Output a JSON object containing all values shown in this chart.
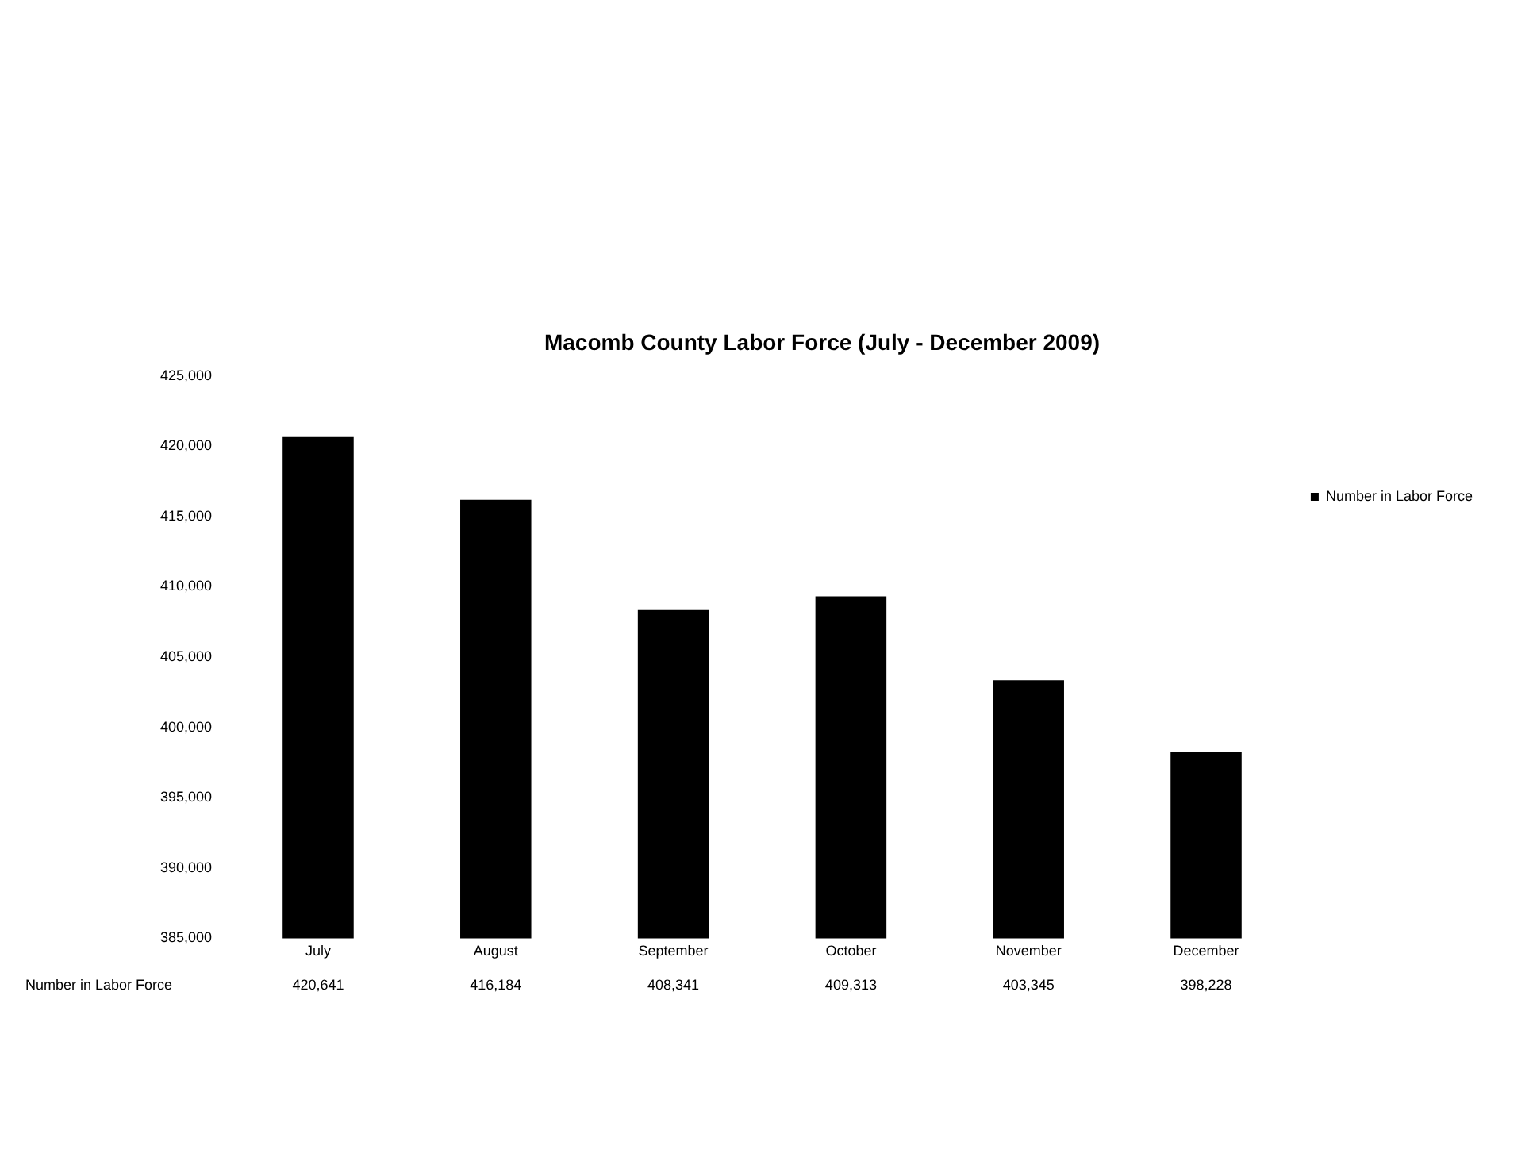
{
  "chart_data": {
    "type": "bar",
    "title": "Macomb County Labor Force (July - December 2009)",
    "categories": [
      "July",
      "August",
      "September",
      "October",
      "November",
      "December"
    ],
    "series": [
      {
        "name": "Number in Labor Force",
        "color": "#000000",
        "values": [
          420641,
          416184,
          408341,
          409313,
          403345,
          398228
        ],
        "value_labels": [
          "420,641",
          "416,184",
          "408,341",
          "409,313",
          "403,345",
          "398,228"
        ]
      }
    ],
    "ylim": [
      385000,
      425000
    ],
    "yticks": [
      {
        "value": 385000,
        "label": "385,000"
      },
      {
        "value": 390000,
        "label": "390,000"
      },
      {
        "value": 395000,
        "label": "395,000"
      },
      {
        "value": 400000,
        "label": "400,000"
      },
      {
        "value": 405000,
        "label": "405,000"
      },
      {
        "value": 410000,
        "label": "410,000"
      },
      {
        "value": 415000,
        "label": "415,000"
      },
      {
        "value": 420000,
        "label": "420,000"
      },
      {
        "value": 425000,
        "label": "425,000"
      }
    ],
    "grid": false,
    "legend": "right"
  }
}
